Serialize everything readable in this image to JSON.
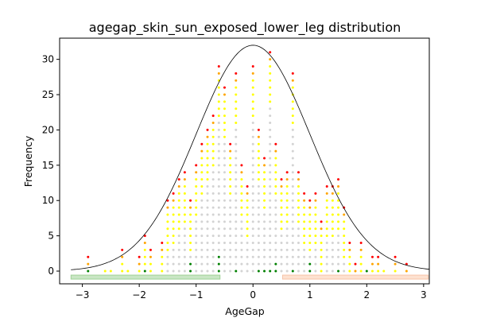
{
  "chart_data": {
    "type": "scatter",
    "title": "agegap_skin_sun_exposed_lower_leg distribution",
    "xlabel": "AgeGap",
    "ylabel": "Frequency",
    "xlim": [
      -3.4,
      3.1
    ],
    "ylim": [
      -1.8,
      33
    ],
    "xticks": [
      -3,
      -2,
      -1,
      0,
      1,
      2,
      3
    ],
    "yticks": [
      0,
      5,
      10,
      15,
      20,
      25,
      30
    ],
    "grid": false,
    "bin_width": 0.1,
    "columns": [
      {
        "x": -2.9,
        "n": 2
      },
      {
        "x": -2.6,
        "n": 0
      },
      {
        "x": -2.5,
        "n": 0
      },
      {
        "x": -2.3,
        "n": 3
      },
      {
        "x": -2.2,
        "n": 0
      },
      {
        "x": -2.0,
        "n": 2
      },
      {
        "x": -1.9,
        "n": 5
      },
      {
        "x": -1.8,
        "n": 3
      },
      {
        "x": -1.6,
        "n": 4
      },
      {
        "x": -1.5,
        "n": 10
      },
      {
        "x": -1.4,
        "n": 11
      },
      {
        "x": -1.3,
        "n": 13
      },
      {
        "x": -1.2,
        "n": 14
      },
      {
        "x": -1.1,
        "n": 10
      },
      {
        "x": -1.0,
        "n": 15
      },
      {
        "x": -0.9,
        "n": 18
      },
      {
        "x": -0.8,
        "n": 20
      },
      {
        "x": -0.7,
        "n": 22
      },
      {
        "x": -0.6,
        "n": 29
      },
      {
        "x": -0.5,
        "n": 26
      },
      {
        "x": -0.4,
        "n": 18
      },
      {
        "x": -0.3,
        "n": 28
      },
      {
        "x": -0.2,
        "n": 15
      },
      {
        "x": -0.1,
        "n": 12
      },
      {
        "x": 0.0,
        "n": 29
      },
      {
        "x": 0.1,
        "n": 20
      },
      {
        "x": 0.2,
        "n": 16
      },
      {
        "x": 0.3,
        "n": 31
      },
      {
        "x": 0.4,
        "n": 18
      },
      {
        "x": 0.5,
        "n": 13
      },
      {
        "x": 0.6,
        "n": 14
      },
      {
        "x": 0.7,
        "n": 28
      },
      {
        "x": 0.8,
        "n": 14
      },
      {
        "x": 0.9,
        "n": 11
      },
      {
        "x": 1.0,
        "n": 10
      },
      {
        "x": 1.1,
        "n": 11
      },
      {
        "x": 1.2,
        "n": 7
      },
      {
        "x": 1.3,
        "n": 12
      },
      {
        "x": 1.4,
        "n": 12
      },
      {
        "x": 1.5,
        "n": 13
      },
      {
        "x": 1.6,
        "n": 9
      },
      {
        "x": 1.7,
        "n": 4
      },
      {
        "x": 1.8,
        "n": 1
      },
      {
        "x": 1.9,
        "n": 4
      },
      {
        "x": 2.0,
        "n": 0
      },
      {
        "x": 2.1,
        "n": 2
      },
      {
        "x": 2.2,
        "n": 2
      },
      {
        "x": 2.3,
        "n": 0
      },
      {
        "x": 2.5,
        "n": 2
      },
      {
        "x": 2.7,
        "n": 1
      }
    ],
    "green_points": [
      {
        "x": -2.9,
        "y": 0
      },
      {
        "x": -1.9,
        "y": 0
      },
      {
        "x": -1.1,
        "y": 0
      },
      {
        "x": -1.1,
        "y": 1
      },
      {
        "x": -0.6,
        "y": 0
      },
      {
        "x": -0.6,
        "y": 1
      },
      {
        "x": -0.6,
        "y": 2
      },
      {
        "x": -0.3,
        "y": 0
      },
      {
        "x": 0.1,
        "y": 0
      },
      {
        "x": 0.2,
        "y": 0
      },
      {
        "x": 0.3,
        "y": 0
      },
      {
        "x": 0.4,
        "y": 0
      },
      {
        "x": 0.4,
        "y": 1
      },
      {
        "x": 0.7,
        "y": 0
      },
      {
        "x": 1.0,
        "y": 0
      },
      {
        "x": 1.0,
        "y": 1
      },
      {
        "x": 1.5,
        "y": 0
      },
      {
        "x": 2.0,
        "y": 0
      }
    ],
    "normal_curve": {
      "mean": 0.0,
      "sd": 1.0,
      "peak": 32
    },
    "bands": [
      {
        "from": -3.2,
        "to": -0.58,
        "y": -0.85,
        "color": "#c9e6c4",
        "edge": "#9fd196"
      },
      {
        "from": 0.52,
        "to": 3.08,
        "y": -0.85,
        "color": "#fde1d0",
        "edge": "#f7c4a8"
      }
    ],
    "colors": {
      "base": "#d3d3d3",
      "mid": "#ffff00",
      "high": "#ffa500",
      "top": "#ff0000",
      "low": "#008000",
      "curve": "#000000"
    }
  }
}
